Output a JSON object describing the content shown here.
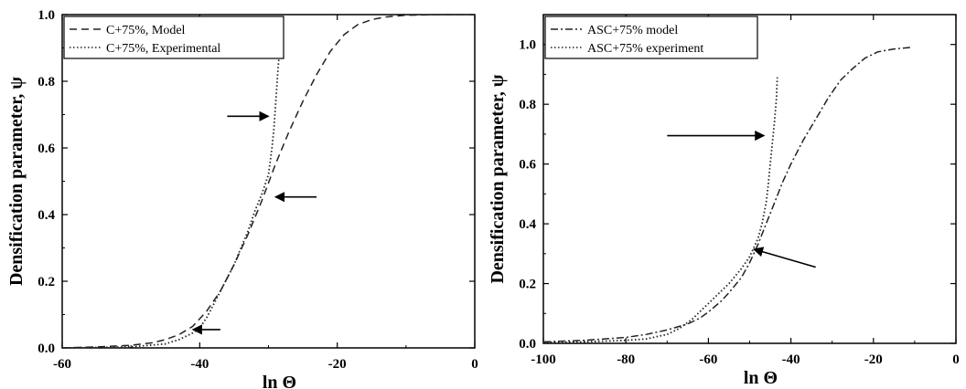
{
  "chart_data": [
    {
      "type": "line",
      "xlabel": "ln Θ",
      "ylabel": "Densification parameter, ψ",
      "xlim": [
        -60,
        0
      ],
      "ylim": [
        0,
        1.0
      ],
      "xticks": [
        -60,
        -40,
        -20,
        0
      ],
      "xtick_labels": [
        "-60",
        "-40",
        "-20",
        "0"
      ],
      "yticks": [
        0.0,
        0.2,
        0.4,
        0.6,
        0.8,
        1.0
      ],
      "ytick_labels": [
        "0.0",
        "0.2",
        "0.4",
        "0.6",
        "0.8",
        "1.0"
      ],
      "legend_position": "top-left",
      "series": [
        {
          "name": "C+75%, Model",
          "style": "dashed",
          "x": [
            -60,
            -55,
            -50,
            -47,
            -45,
            -43,
            -41,
            -39,
            -37,
            -35,
            -33,
            -31,
            -29,
            -27,
            -25,
            -23,
            -21,
            -19,
            -17,
            -15,
            -13,
            -10,
            -5,
            0
          ],
          "y": [
            0.0,
            0.003,
            0.008,
            0.015,
            0.025,
            0.04,
            0.065,
            0.11,
            0.17,
            0.25,
            0.34,
            0.44,
            0.55,
            0.65,
            0.74,
            0.82,
            0.89,
            0.94,
            0.97,
            0.985,
            0.993,
            0.998,
            1.0,
            1.0
          ]
        },
        {
          "name": "C+75%, Experimental",
          "style": "dotted",
          "x": [
            -60,
            -50,
            -45,
            -43,
            -41,
            -40,
            -39,
            -38,
            -37,
            -36,
            -35,
            -34,
            -33,
            -32,
            -31,
            -30,
            -29.5,
            -29.2,
            -29,
            -28.8,
            -28.6,
            -28.4
          ],
          "y": [
            0.0,
            0.003,
            0.012,
            0.025,
            0.045,
            0.06,
            0.09,
            0.13,
            0.17,
            0.21,
            0.25,
            0.3,
            0.35,
            0.41,
            0.46,
            0.52,
            0.6,
            0.66,
            0.72,
            0.78,
            0.84,
            0.89
          ]
        }
      ],
      "arrows": [
        {
          "from": [
            -37,
            0.055
          ],
          "to": [
            -41,
            0.055
          ]
        },
        {
          "from": [
            -23,
            0.453
          ],
          "to": [
            -29,
            0.453
          ]
        },
        {
          "from": [
            -36,
            0.695
          ],
          "to": [
            -30,
            0.695
          ]
        }
      ]
    },
    {
      "type": "line",
      "xlabel": "ln Θ",
      "ylabel": "Densification parameter, ψ",
      "xlim": [
        -100,
        0
      ],
      "ylim": [
        0,
        1.1
      ],
      "xticks": [
        -100,
        -80,
        -60,
        -40,
        -20,
        0
      ],
      "xtick_labels": [
        "-100",
        "-80",
        "-60",
        "-40",
        "-20",
        "0"
      ],
      "yticks": [
        0.0,
        0.2,
        0.4,
        0.6,
        0.8,
        1.0
      ],
      "ytick_labels": [
        "0.0",
        "0.2",
        "0.4",
        "0.6",
        "0.8",
        "1.0"
      ],
      "legend_position": "top-left",
      "series": [
        {
          "name": "ASC+75% model",
          "style": "dashdot",
          "x": [
            -100,
            -90,
            -80,
            -75,
            -70,
            -65,
            -62,
            -60,
            -57,
            -55,
            -52,
            -50,
            -48,
            -46,
            -44,
            -42,
            -40,
            -37,
            -34,
            -31,
            -28,
            -25,
            -22,
            -19,
            -15,
            -11
          ],
          "y": [
            0.005,
            0.01,
            0.02,
            0.03,
            0.045,
            0.065,
            0.085,
            0.105,
            0.14,
            0.17,
            0.22,
            0.27,
            0.33,
            0.4,
            0.47,
            0.54,
            0.6,
            0.68,
            0.75,
            0.82,
            0.88,
            0.92,
            0.955,
            0.975,
            0.985,
            0.99
          ]
        },
        {
          "name": "ASC+75% experiment",
          "style": "dotted",
          "x": [
            -100,
            -90,
            -80,
            -75,
            -70,
            -67,
            -64,
            -61,
            -58,
            -55,
            -52,
            -50,
            -48,
            -47,
            -46,
            -45.5,
            -45,
            -44.5,
            -44,
            -43.5,
            -43.3
          ],
          "y": [
            0.003,
            0.005,
            0.01,
            0.015,
            0.03,
            0.05,
            0.08,
            0.12,
            0.16,
            0.2,
            0.25,
            0.29,
            0.35,
            0.4,
            0.47,
            0.53,
            0.6,
            0.67,
            0.74,
            0.82,
            0.89
          ]
        }
      ],
      "arrows": [
        {
          "from": [
            -70,
            0.695
          ],
          "to": [
            -46.5,
            0.695
          ]
        },
        {
          "from": [
            -34,
            0.255
          ],
          "to": [
            -49,
            0.315
          ]
        }
      ]
    }
  ]
}
